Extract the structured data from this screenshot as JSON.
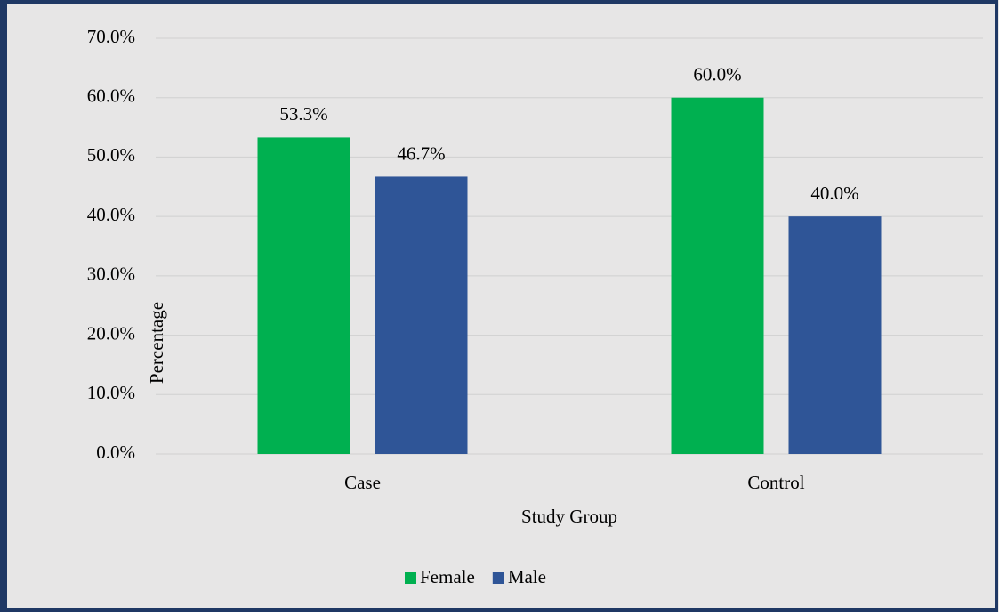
{
  "chart_data": {
    "type": "bar",
    "categories": [
      "Case",
      "Control"
    ],
    "series": [
      {
        "name": "Female",
        "color": "#00b050",
        "values": [
          53.3,
          60.0
        ],
        "value_labels": [
          "53.3%",
          "60.0%"
        ]
      },
      {
        "name": "Male",
        "color": "#2f5597",
        "values": [
          46.7,
          40.0
        ],
        "value_labels": [
          "46.7%",
          "40.0%"
        ]
      }
    ],
    "ylim": [
      0,
      70
    ],
    "yticks": [
      {
        "value": 0,
        "label": "0.0%"
      },
      {
        "value": 10,
        "label": "10.0%"
      },
      {
        "value": 20,
        "label": "20.0%"
      },
      {
        "value": 30,
        "label": "30.0%"
      },
      {
        "value": 40,
        "label": "40.0%"
      },
      {
        "value": 50,
        "label": "50.0%"
      },
      {
        "value": 60,
        "label": "60.0%"
      },
      {
        "value": 70,
        "label": "70.0%"
      }
    ],
    "xlabel": "Study Group",
    "ylabel": "Percentage",
    "grid": true,
    "legend": "bottom"
  }
}
